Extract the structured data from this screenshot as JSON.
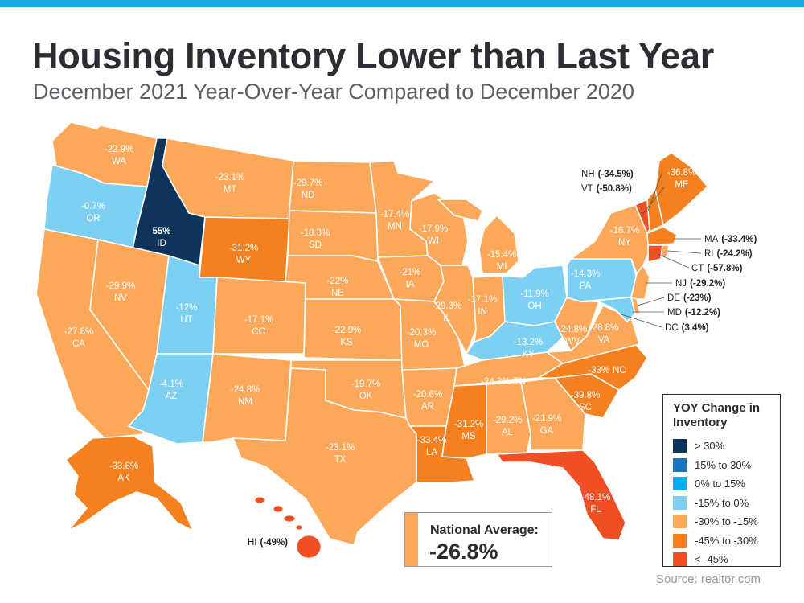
{
  "title": "Housing Inventory Lower than Last Year",
  "subtitle": "December 2021 Year-Over-Year Compared to December 2020",
  "source": "Source: realtor.com",
  "colors": {
    "top_bar": "#1aa7df",
    "gt30": "#0e3559",
    "15to30": "#1b75bb",
    "0to15": "#00aeef",
    "m15to0": "#7dd0f2",
    "m30tom15": "#fba85a",
    "m45tom30": "#f5801f",
    "ltm45": "#f04e23"
  },
  "legend": {
    "title": "YOY Change in Inventory",
    "items": [
      {
        "label": "> 30%",
        "color": "#0e3559"
      },
      {
        "label": "15% to 30%",
        "color": "#1b75bb"
      },
      {
        "label": "0% to 15%",
        "color": "#00aeef"
      },
      {
        "label": "-15% to 0%",
        "color": "#7dd0f2"
      },
      {
        "label": "-30% to -15%",
        "color": "#fba85a"
      },
      {
        "label": "-45% to -30%",
        "color": "#f5801f"
      },
      {
        "label": "< -45%",
        "color": "#f04e23"
      }
    ]
  },
  "national_average": {
    "label": "National Average:",
    "value": "-26.8%"
  },
  "states": {
    "WA": {
      "abbr": "WA",
      "value": "-22.9%"
    },
    "OR": {
      "abbr": "OR",
      "value": "-0.7%"
    },
    "ID": {
      "abbr": "ID",
      "value": "55%"
    },
    "MT": {
      "abbr": "MT",
      "value": "-23.1%"
    },
    "WY": {
      "abbr": "WY",
      "value": "-31.2%"
    },
    "CA": {
      "abbr": "CA",
      "value": "-27.8%"
    },
    "NV": {
      "abbr": "NV",
      "value": "-29.9%"
    },
    "UT": {
      "abbr": "UT",
      "value": "-12%"
    },
    "AZ": {
      "abbr": "AZ",
      "value": "-4.1%"
    },
    "CO": {
      "abbr": "CO",
      "value": "-17.1%"
    },
    "NM": {
      "abbr": "NM",
      "value": "-24.8%"
    },
    "ND": {
      "abbr": "ND",
      "value": "-29.7%"
    },
    "SD": {
      "abbr": "SD",
      "value": "-18.3%"
    },
    "NE": {
      "abbr": "NE",
      "value": "-22%"
    },
    "KS": {
      "abbr": "KS",
      "value": "-22.9%"
    },
    "OK": {
      "abbr": "OK",
      "value": "-19.7%"
    },
    "TX": {
      "abbr": "TX",
      "value": "-23.1%"
    },
    "MN": {
      "abbr": "MN",
      "value": "-17.4%"
    },
    "IA": {
      "abbr": "IA",
      "value": "-21%"
    },
    "MO": {
      "abbr": "MO",
      "value": "-20.3%"
    },
    "AR": {
      "abbr": "AR",
      "value": "-20.6%"
    },
    "LA": {
      "abbr": "LA",
      "value": "-33.4%"
    },
    "WI": {
      "abbr": "WI",
      "value": "-17.9%"
    },
    "IL": {
      "abbr": "IL",
      "value": "-29.3%"
    },
    "MI": {
      "abbr": "MI",
      "value": "-15.4%"
    },
    "IN": {
      "abbr": "IN",
      "value": "-17.1%"
    },
    "OH": {
      "abbr": "OH",
      "value": "-11.9%"
    },
    "KY": {
      "abbr": "KY",
      "value": "-13.2%"
    },
    "TN": {
      "abbr": "TN",
      "value": "-24.3%"
    },
    "MS": {
      "abbr": "MS",
      "value": "-31.2%"
    },
    "AL": {
      "abbr": "AL",
      "value": "-29.2%"
    },
    "GA": {
      "abbr": "GA",
      "value": "-21.9%"
    },
    "FL": {
      "abbr": "FL",
      "value": "-48.1%"
    },
    "SC": {
      "abbr": "SC",
      "value": "-39.8%"
    },
    "NC": {
      "abbr": "NC",
      "value": "-33%"
    },
    "VA": {
      "abbr": "VA",
      "value": "-28.8%"
    },
    "WV": {
      "abbr": "WV",
      "value": "-24.8%"
    },
    "PA": {
      "abbr": "PA",
      "value": "-14.3%"
    },
    "NY": {
      "abbr": "NY",
      "value": "-16.7%"
    },
    "ME": {
      "abbr": "ME",
      "value": "-36.8%"
    },
    "AK": {
      "abbr": "AK",
      "value": "-33.8%"
    }
  },
  "callouts": {
    "NH": {
      "abbr": "NH",
      "value": "(-34.5%)"
    },
    "VT": {
      "abbr": "VT",
      "value": "(-50.8%)"
    },
    "MA": {
      "abbr": "MA",
      "value": "(-33.4%)"
    },
    "RI": {
      "abbr": "RI",
      "value": "(-24.2%)"
    },
    "CT": {
      "abbr": "CT",
      "value": "(-57.8%)"
    },
    "NJ": {
      "abbr": "NJ",
      "value": "(-29.2%)"
    },
    "DE": {
      "abbr": "DE",
      "value": "(-23%)"
    },
    "MD": {
      "abbr": "MD",
      "value": "(-12.2%)"
    },
    "DC": {
      "abbr": "DC",
      "value": "(3.4%)"
    },
    "HI": {
      "abbr": "HI",
      "value": "(-49%)"
    }
  }
}
